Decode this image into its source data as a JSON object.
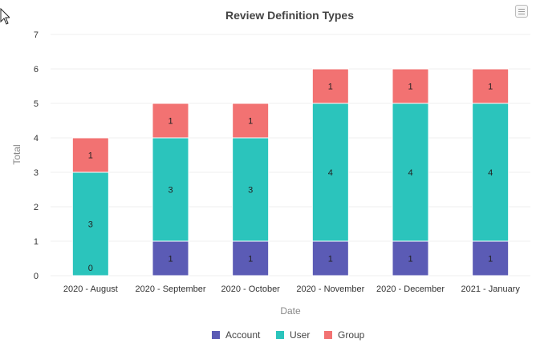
{
  "chart_data": {
    "type": "bar",
    "stacked": true,
    "title": "Review Definition Types",
    "xlabel": "Date",
    "ylabel": "Total",
    "ylim": [
      0,
      7
    ],
    "yticks": [
      "0",
      "1",
      "2",
      "3",
      "4",
      "5",
      "6",
      "7"
    ],
    "categories": [
      "2020 - August",
      "2020 - September",
      "2020 - October",
      "2020 - November",
      "2020 - December",
      "2021 - January"
    ],
    "series": [
      {
        "name": "Account",
        "color": "#5b5bb5",
        "values": [
          0,
          1,
          1,
          1,
          1,
          1
        ]
      },
      {
        "name": "User",
        "color": "#2bc4bc",
        "values": [
          3,
          3,
          3,
          4,
          4,
          4
        ]
      },
      {
        "name": "Group",
        "color": "#f27272",
        "values": [
          1,
          1,
          1,
          1,
          1,
          1
        ]
      }
    ],
    "legend_position": "bottom"
  },
  "icons": {
    "menu": "hamburger-menu-icon",
    "cursor": "mouse-cursor-icon"
  }
}
